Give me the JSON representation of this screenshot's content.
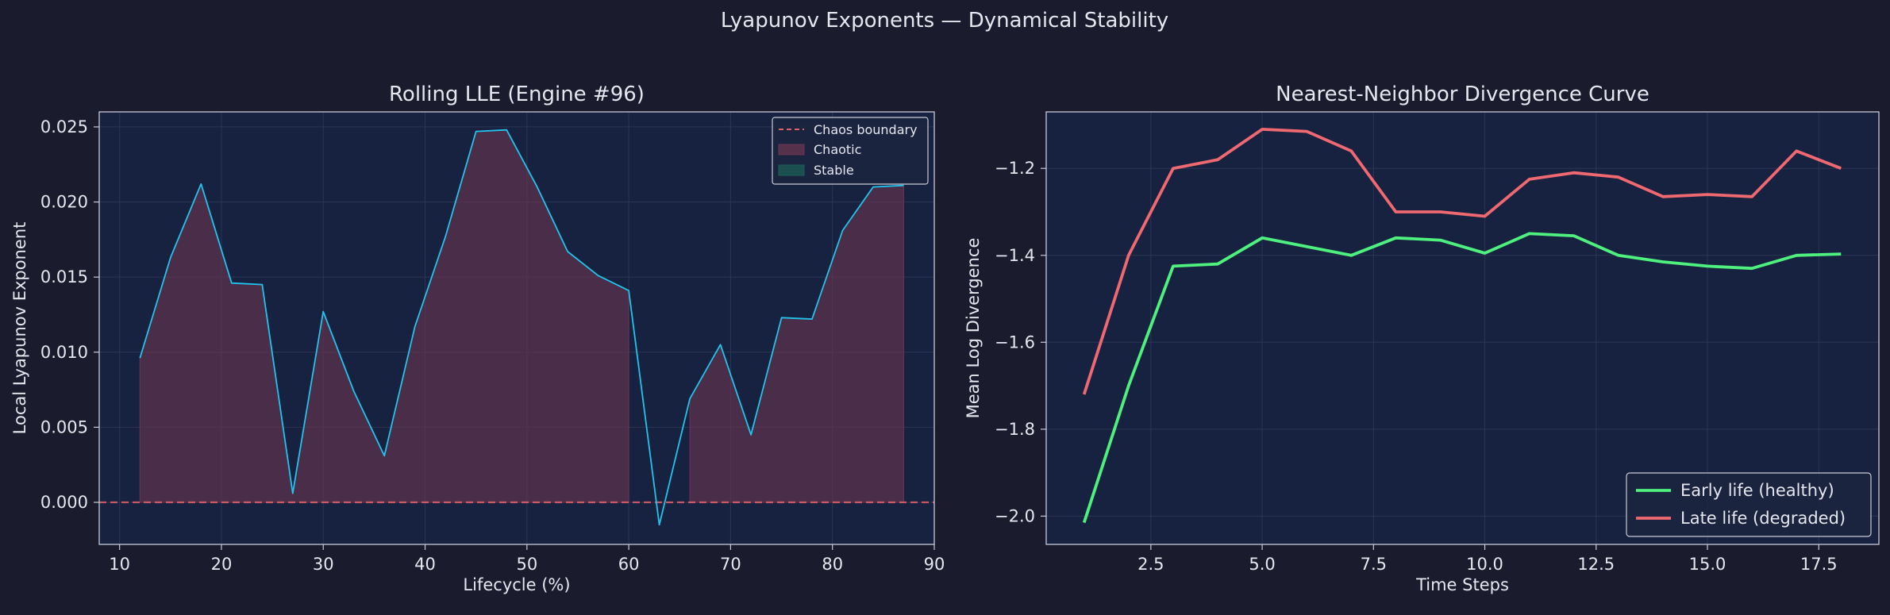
{
  "figure": {
    "suptitle": "Lyapunov Exponents — Dynamical Stability",
    "colors": {
      "figure_bg": "#1a1c2e",
      "axes_bg": "#172240",
      "text": "#e6e6ee",
      "spine": "#c8cad6",
      "grid": "#2c3652"
    }
  },
  "chart_data": [
    {
      "type": "line",
      "title": "Rolling LLE (Engine #96)",
      "xlabel": "Lifecycle (%)",
      "ylabel": "Local Lyapunov Exponent",
      "xlim": [
        8,
        90
      ],
      "ylim": [
        -0.0028,
        0.026
      ],
      "xticks": [
        10,
        20,
        30,
        40,
        50,
        60,
        70,
        80,
        90
      ],
      "xtick_labels": [
        "10",
        "20",
        "30",
        "40",
        "50",
        "60",
        "70",
        "80",
        "90"
      ],
      "yticks": [
        0.0,
        0.005,
        0.01,
        0.015,
        0.02,
        0.025
      ],
      "ytick_labels": [
        "0.000",
        "0.005",
        "0.010",
        "0.015",
        "0.020",
        "0.025"
      ],
      "grid": true,
      "legend_position": "top-right",
      "x": [
        12,
        15,
        18,
        21,
        24,
        27,
        30,
        33,
        36,
        39,
        42,
        45,
        48,
        51,
        54,
        57,
        60,
        63,
        66,
        69,
        72,
        75,
        78,
        81,
        84,
        87
      ],
      "series": [
        {
          "values": [
            0.0096,
            0.0163,
            0.0212,
            0.0146,
            0.0145,
            0.0006,
            0.0127,
            0.0074,
            0.0031,
            0.0117,
            0.0177,
            0.0247,
            0.0248,
            0.021,
            0.0167,
            0.0151,
            0.0141,
            -0.0015,
            0.0069,
            0.0105,
            0.0045,
            0.0123,
            0.0122,
            0.0181,
            0.021,
            0.0211
          ],
          "color": "#22c4ee"
        }
      ],
      "fills": [
        {
          "label": "Chaotic",
          "color": "#6b3550",
          "rule": "above-zero"
        },
        {
          "label": "Stable",
          "color": "#1d5e55",
          "rule": "below-zero"
        }
      ],
      "reference_line": {
        "label": "Chaos boundary",
        "y": 0.0,
        "color": "#e0606a",
        "style": "dashed"
      },
      "legend": [
        "Chaos boundary",
        "Chaotic",
        "Stable"
      ]
    },
    {
      "type": "line",
      "title": "Nearest-Neighbor Divergence Curve",
      "xlabel": "Time Steps",
      "ylabel": "Mean Log Divergence",
      "xlim": [
        0.15,
        18.85
      ],
      "ylim": [
        -2.065,
        -1.07
      ],
      "xticks": [
        2.5,
        5.0,
        7.5,
        10.0,
        12.5,
        15.0,
        17.5
      ],
      "xtick_labels": [
        "2.5",
        "5.0",
        "7.5",
        "10.0",
        "12.5",
        "15.0",
        "17.5"
      ],
      "yticks": [
        -2.0,
        -1.8,
        -1.6,
        -1.4,
        -1.2
      ],
      "ytick_labels": [
        "−2.0",
        "−1.8",
        "−1.6",
        "−1.4",
        "−1.2"
      ],
      "grid": true,
      "legend_position": "bottom-right",
      "x": [
        1,
        2,
        3,
        4,
        5,
        6,
        7,
        8,
        9,
        10,
        11,
        12,
        13,
        14,
        15,
        16,
        17,
        18
      ],
      "series": [
        {
          "name": "Early life (healthy)",
          "color": "#4ef07e",
          "values": [
            -2.015,
            -1.7,
            -1.425,
            -1.42,
            -1.36,
            -1.38,
            -1.4,
            -1.36,
            -1.365,
            -1.395,
            -1.35,
            -1.355,
            -1.4,
            -1.415,
            -1.425,
            -1.43,
            -1.4,
            -1.397
          ]
        },
        {
          "name": "Late life (degraded)",
          "color": "#f06870",
          "values": [
            -1.72,
            -1.4,
            -1.2,
            -1.18,
            -1.11,
            -1.115,
            -1.16,
            -1.3,
            -1.3,
            -1.31,
            -1.225,
            -1.21,
            -1.22,
            -1.265,
            -1.26,
            -1.265,
            -1.16,
            -1.2
          ]
        }
      ]
    }
  ]
}
